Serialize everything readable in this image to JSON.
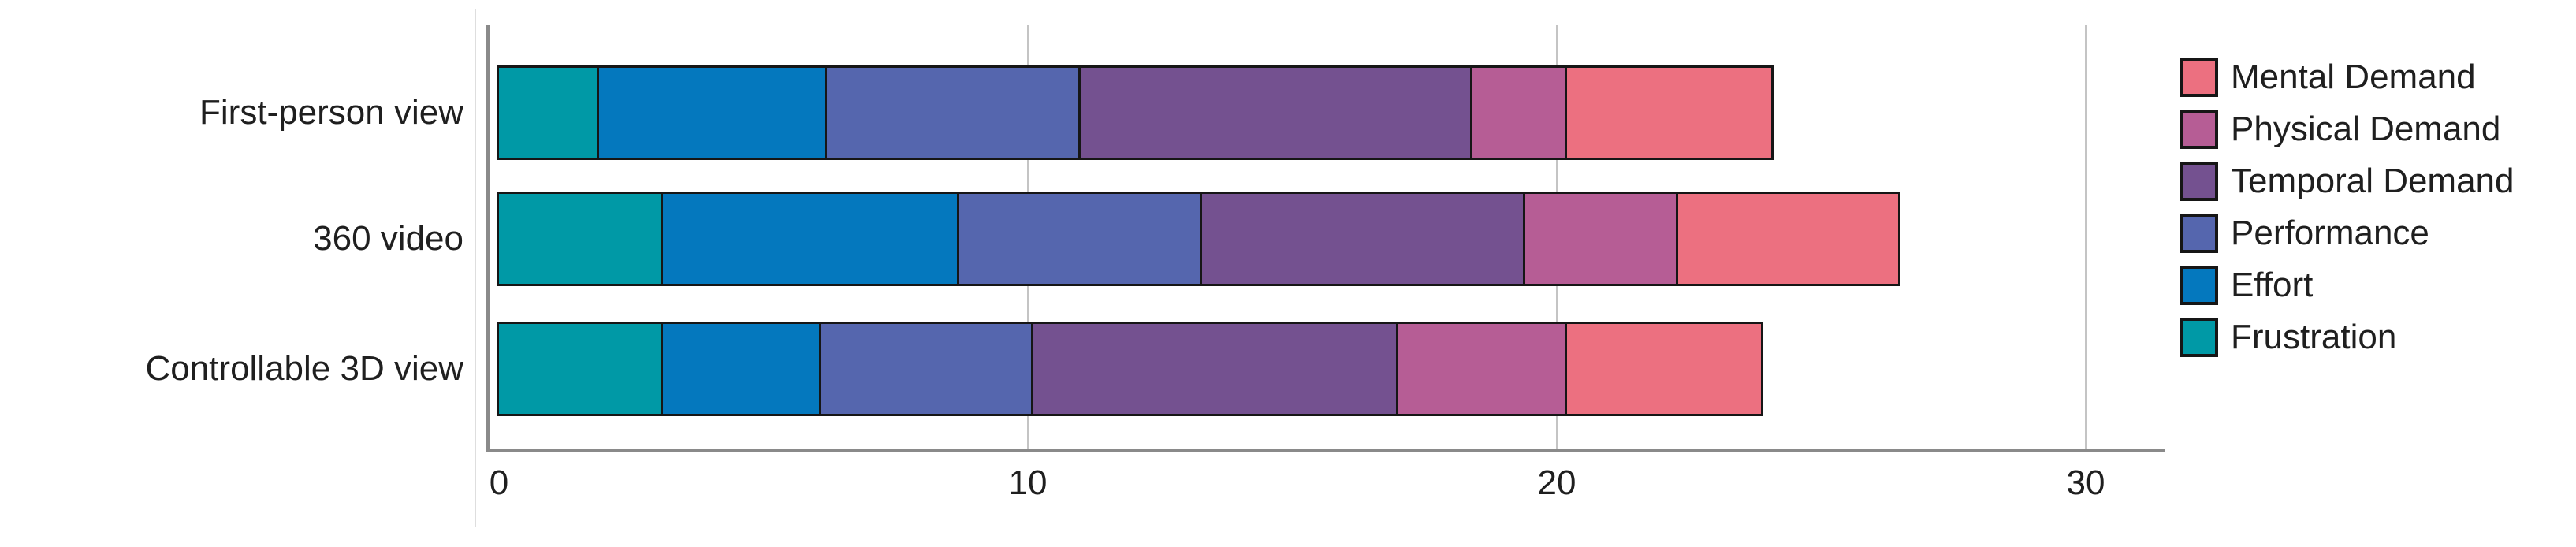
{
  "chart_data": {
    "type": "bar",
    "variant": "horizontal-stacked",
    "title": "",
    "categories": [
      "First-person view",
      "360 video",
      "Controllable 3D view"
    ],
    "series": [
      {
        "name": "Frustration",
        "color": "#0099A6",
        "values": [
          1.9,
          3.1,
          3.1
        ]
      },
      {
        "name": "Effort",
        "color": "#0478BE",
        "values": [
          4.3,
          5.6,
          3.0
        ]
      },
      {
        "name": "Performance",
        "color": "#5566AE",
        "values": [
          4.8,
          4.6,
          4.0
        ]
      },
      {
        "name": "Temporal Demand",
        "color": "#745190",
        "values": [
          7.4,
          6.1,
          6.9
        ]
      },
      {
        "name": "Physical Demand",
        "color": "#B65D95",
        "values": [
          1.8,
          2.9,
          3.2
        ]
      },
      {
        "name": "Mental Demand",
        "color": "#EC7080",
        "values": [
          3.9,
          4.2,
          3.7
        ]
      }
    ],
    "totals": [
      24.1,
      26.5,
      23.9
    ],
    "x_axis": {
      "tick_labels": [
        "0",
        "10",
        "20",
        "30"
      ],
      "tick_values": [
        0,
        10,
        20,
        30
      ],
      "range": [
        0,
        31.5
      ],
      "gridlines": true
    },
    "legend": {
      "position": "right",
      "order": [
        "Mental Demand",
        "Physical Demand",
        "Temporal Demand",
        "Performance",
        "Effort",
        "Frustration"
      ]
    },
    "style_colors": {
      "axis": "#8a8a8a",
      "gridline": "#c4c4c4",
      "bar_border": "#161616",
      "text": "#1f1f1f"
    }
  }
}
